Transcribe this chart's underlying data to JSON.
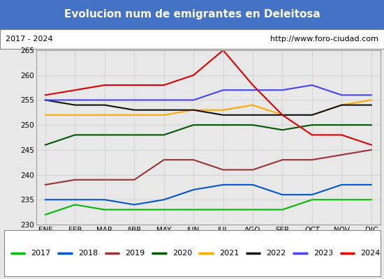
{
  "title": "Evolucion num de emigrantes en Deleitosa",
  "title_bgcolor": "#4472c4",
  "title_color": "white",
  "subtitle_left": "2017 - 2024",
  "subtitle_right": "http://www.foro-ciudad.com",
  "months": [
    "ENE",
    "FEB",
    "MAR",
    "ABR",
    "MAY",
    "JUN",
    "JUL",
    "AGO",
    "SEP",
    "OCT",
    "NOV",
    "DIC"
  ],
  "ylim": [
    230,
    265
  ],
  "yticks": [
    230,
    235,
    240,
    245,
    250,
    255,
    260,
    265
  ],
  "series": {
    "2017": {
      "color": "#00bb00",
      "data": [
        232,
        234,
        233,
        233,
        233,
        233,
        233,
        233,
        233,
        235,
        235,
        235
      ]
    },
    "2018": {
      "color": "#0055cc",
      "data": [
        235,
        235,
        235,
        234,
        235,
        237,
        238,
        238,
        236,
        236,
        238,
        238
      ]
    },
    "2019": {
      "color": "#993333",
      "data": [
        238,
        239,
        239,
        239,
        243,
        243,
        241,
        241,
        243,
        243,
        244,
        245
      ]
    },
    "2020": {
      "color": "#005500",
      "data": [
        246,
        248,
        248,
        248,
        248,
        250,
        250,
        250,
        249,
        250,
        250,
        250
      ]
    },
    "2021": {
      "color": "#ffaa00",
      "data": [
        252,
        252,
        252,
        252,
        252,
        253,
        253,
        254,
        252,
        252,
        254,
        255
      ]
    },
    "2022": {
      "color": "#111111",
      "data": [
        255,
        254,
        254,
        253,
        253,
        253,
        252,
        252,
        252,
        252,
        254,
        254
      ]
    },
    "2023": {
      "color": "#4444ff",
      "data": [
        255,
        255,
        255,
        255,
        255,
        255,
        257,
        257,
        257,
        258,
        256,
        256
      ]
    },
    "2024": {
      "color": "#dd0000",
      "data": [
        256,
        257,
        258,
        258,
        258,
        260,
        265,
        258,
        252,
        248,
        248,
        246
      ]
    }
  },
  "legend_order": [
    "2017",
    "2018",
    "2019",
    "2020",
    "2021",
    "2022",
    "2023",
    "2024"
  ],
  "bg_color": "#e8e8e8",
  "plot_bg": "#e8e8e8",
  "title_fontsize": 11,
  "tick_fontsize": 7.5,
  "legend_fontsize": 8
}
